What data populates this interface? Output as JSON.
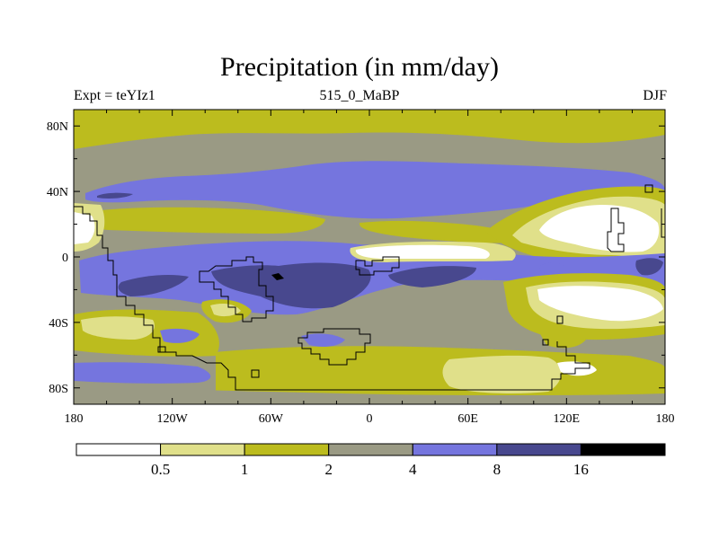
{
  "chart_data": {
    "type": "heatmap",
    "title": "Precipitation (in mm/day)",
    "subtitle_left": "Expt = teYIz1",
    "subtitle_center": "515_0_MaBP",
    "subtitle_right": "DJF",
    "variable": "Precipitation",
    "units": "mm/day",
    "x_ticks": [
      "180",
      "120W",
      "60W",
      "0",
      "60E",
      "120E",
      "180"
    ],
    "x_tick_values": [
      -180,
      -120,
      -60,
      0,
      60,
      120,
      180
    ],
    "y_ticks": [
      "80N",
      "40N",
      "0",
      "40S",
      "80S"
    ],
    "y_tick_values": [
      80,
      40,
      0,
      -40,
      -80
    ],
    "xlim": [
      -180,
      180
    ],
    "ylim": [
      -90,
      90
    ],
    "colorbar": {
      "boundaries": [
        0.5,
        1,
        2,
        4,
        8,
        16
      ],
      "labels": [
        "0.5",
        "1",
        "2",
        "4",
        "8",
        "16"
      ],
      "colors": [
        "#ffffff",
        "#e0e08a",
        "#bcbc1e",
        "#9a9a84",
        "#7575de",
        "#48488e",
        "#000000"
      ]
    }
  }
}
